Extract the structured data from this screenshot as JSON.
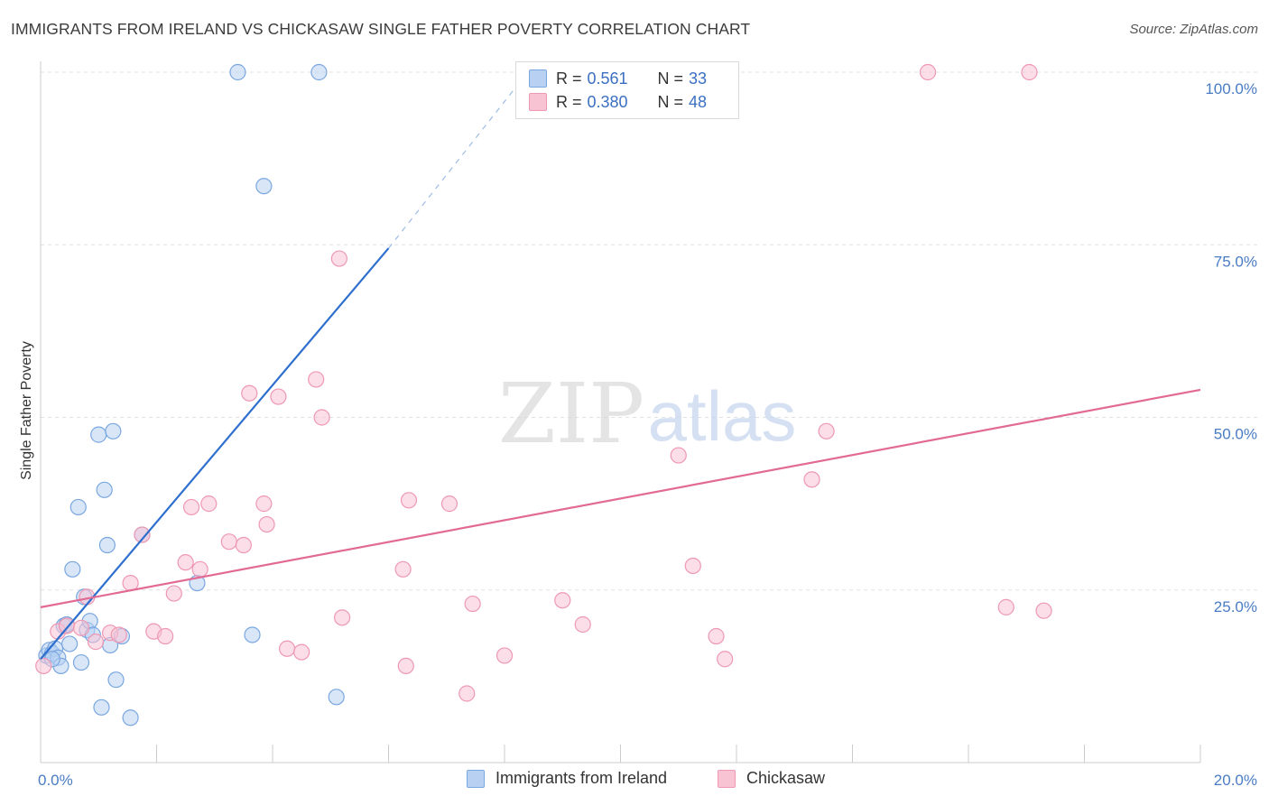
{
  "header": {
    "title": "IMMIGRANTS FROM IRELAND VS CHICKASAW SINGLE FATHER POVERTY CORRELATION CHART",
    "source": "Source: ZipAtlas.com"
  },
  "watermark": {
    "zip": "ZIP",
    "atlas": "atlas"
  },
  "colors": {
    "ireland_fill": "#b8d1f3",
    "ireland_stroke": "#7aa7e0",
    "ireland_line": "#2e6fce",
    "chickasaw_fill": "#f8c3d3",
    "chickasaw_stroke": "#ee98b4",
    "chickasaw_line": "#e26a95",
    "tick_label": "#4a7cc4",
    "grid": "#e0e0e0"
  },
  "legend": {
    "rows": [
      {
        "r_label": "R =",
        "r_value": "0.561",
        "n_label": "N =",
        "n_value": "33"
      },
      {
        "r_label": "R =",
        "r_value": "0.380",
        "n_label": "N =",
        "n_value": "48"
      }
    ]
  },
  "bottom_legend": {
    "items": [
      {
        "label": "Immigrants from Ireland"
      },
      {
        "label": "Chickasaw"
      }
    ]
  },
  "chart_data": {
    "type": "scatter",
    "ylabel": "Single Father Poverty",
    "xlim": [
      0,
      20
    ],
    "ylim": [
      0,
      100
    ],
    "x_tick_labels": [
      {
        "value": 0,
        "label": "0.0%"
      },
      {
        "value": 20,
        "label": "20.0%"
      }
    ],
    "y_tick_labels": [
      {
        "value": 25,
        "label": "25.0%"
      },
      {
        "value": 50,
        "label": "50.0%"
      },
      {
        "value": 75,
        "label": "75.0%"
      },
      {
        "value": 100,
        "label": "100.0%"
      }
    ],
    "x_minor_ticks": [
      0,
      2,
      4,
      6,
      8,
      10,
      12,
      14,
      16,
      18,
      20
    ],
    "y_gridlines": [
      25,
      50,
      75,
      100
    ],
    "series": [
      {
        "name": "Immigrants from Ireland",
        "points": [
          [
            0.1,
            15.5
          ],
          [
            0.15,
            16.3
          ],
          [
            0.2,
            15.8
          ],
          [
            0.25,
            16.5
          ],
          [
            0.3,
            15.2
          ],
          [
            0.35,
            14.0
          ],
          [
            0.4,
            19.8
          ],
          [
            0.45,
            20.0
          ],
          [
            0.5,
            17.2
          ],
          [
            0.55,
            28.0
          ],
          [
            0.65,
            37.0
          ],
          [
            0.7,
            14.5
          ],
          [
            0.75,
            24.0
          ],
          [
            0.8,
            19.2
          ],
          [
            0.85,
            20.5
          ],
          [
            0.9,
            18.5
          ],
          [
            1.0,
            47.5
          ],
          [
            1.05,
            8.0
          ],
          [
            1.1,
            39.5
          ],
          [
            1.15,
            31.5
          ],
          [
            1.2,
            17.0
          ],
          [
            1.25,
            48.0
          ],
          [
            1.3,
            12.0
          ],
          [
            1.4,
            18.3
          ],
          [
            1.55,
            6.5
          ],
          [
            1.75,
            33.0
          ],
          [
            2.7,
            26.0
          ],
          [
            3.4,
            100.0
          ],
          [
            3.65,
            18.5
          ],
          [
            3.85,
            83.5
          ],
          [
            4.8,
            100.0
          ],
          [
            5.1,
            9.5
          ],
          [
            0.2,
            15.0
          ]
        ],
        "trend": {
          "x": [
            0,
            6.0
          ],
          "y": [
            15.0,
            74.5
          ],
          "dashed_to": [
            8.4,
            100.0
          ]
        }
      },
      {
        "name": "Chickasaw",
        "points": [
          [
            0.05,
            14.0
          ],
          [
            0.3,
            19.0
          ],
          [
            0.45,
            19.8
          ],
          [
            0.7,
            19.5
          ],
          [
            0.8,
            24.0
          ],
          [
            0.95,
            17.5
          ],
          [
            1.2,
            18.8
          ],
          [
            1.35,
            18.5
          ],
          [
            1.55,
            26.0
          ],
          [
            1.75,
            33.0
          ],
          [
            1.95,
            19.0
          ],
          [
            2.15,
            18.3
          ],
          [
            2.3,
            24.5
          ],
          [
            2.5,
            29.0
          ],
          [
            2.6,
            37.0
          ],
          [
            2.75,
            28.0
          ],
          [
            2.9,
            37.5
          ],
          [
            3.25,
            32.0
          ],
          [
            3.5,
            31.5
          ],
          [
            3.6,
            53.5
          ],
          [
            3.85,
            37.5
          ],
          [
            3.9,
            34.5
          ],
          [
            4.1,
            53.0
          ],
          [
            4.25,
            16.5
          ],
          [
            4.5,
            16.0
          ],
          [
            4.75,
            55.5
          ],
          [
            4.85,
            50.0
          ],
          [
            5.15,
            73.0
          ],
          [
            5.2,
            21.0
          ],
          [
            6.25,
            28.0
          ],
          [
            6.3,
            14.0
          ],
          [
            6.35,
            38.0
          ],
          [
            7.05,
            37.5
          ],
          [
            7.35,
            10.0
          ],
          [
            7.45,
            23.0
          ],
          [
            8.0,
            15.5
          ],
          [
            9.0,
            23.5
          ],
          [
            9.35,
            20.0
          ],
          [
            11.0,
            44.5
          ],
          [
            11.25,
            28.5
          ],
          [
            11.65,
            18.3
          ],
          [
            11.8,
            15.0
          ],
          [
            13.3,
            41.0
          ],
          [
            13.55,
            48.0
          ],
          [
            15.3,
            100.0
          ],
          [
            16.65,
            22.5
          ],
          [
            17.05,
            100.0
          ],
          [
            17.3,
            22.0
          ]
        ],
        "trend": {
          "x": [
            0,
            20
          ],
          "y": [
            22.5,
            54.0
          ]
        }
      }
    ]
  }
}
